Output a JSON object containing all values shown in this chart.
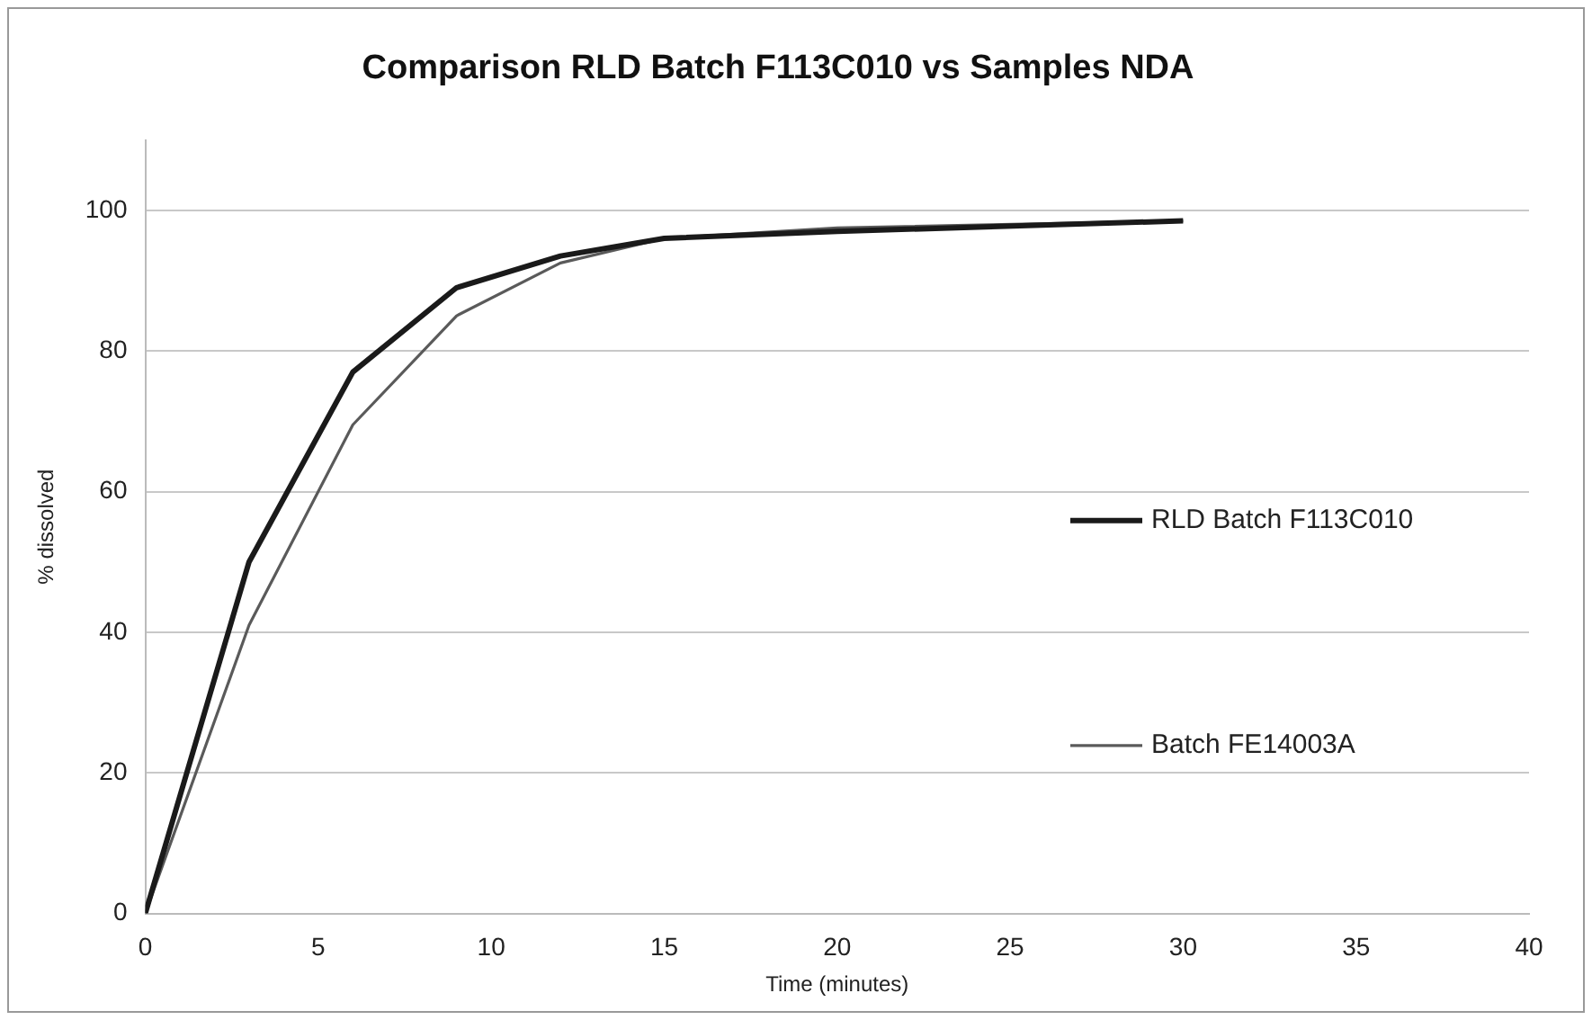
{
  "chart_data": {
    "type": "line",
    "title": "Comparison RLD Batch F113C010 vs Samples NDA",
    "xlabel": "Time (minutes)",
    "ylabel": "% dissolved",
    "x": [
      0,
      3,
      6,
      9,
      12,
      15,
      20,
      30
    ],
    "series": [
      {
        "name": "RLD Batch F113C010",
        "color": "#1a1a1a",
        "values": [
          0,
          50,
          77,
          89,
          93.5,
          96,
          97,
          98.5
        ]
      },
      {
        "name": "Batch FE14003A",
        "color": "#5a5a5a",
        "values": [
          0,
          41,
          69.5,
          85,
          92.5,
          96,
          97.5,
          98.5
        ]
      }
    ],
    "xlim": [
      0,
      40
    ],
    "xticks": [
      0,
      5,
      10,
      15,
      20,
      25,
      30,
      35,
      40
    ],
    "ylim": [
      0,
      110
    ],
    "yticks": [
      0,
      20,
      40,
      60,
      80,
      100
    ],
    "grid": "y",
    "legend": "right",
    "marker": "none",
    "line_style": "solid"
  }
}
